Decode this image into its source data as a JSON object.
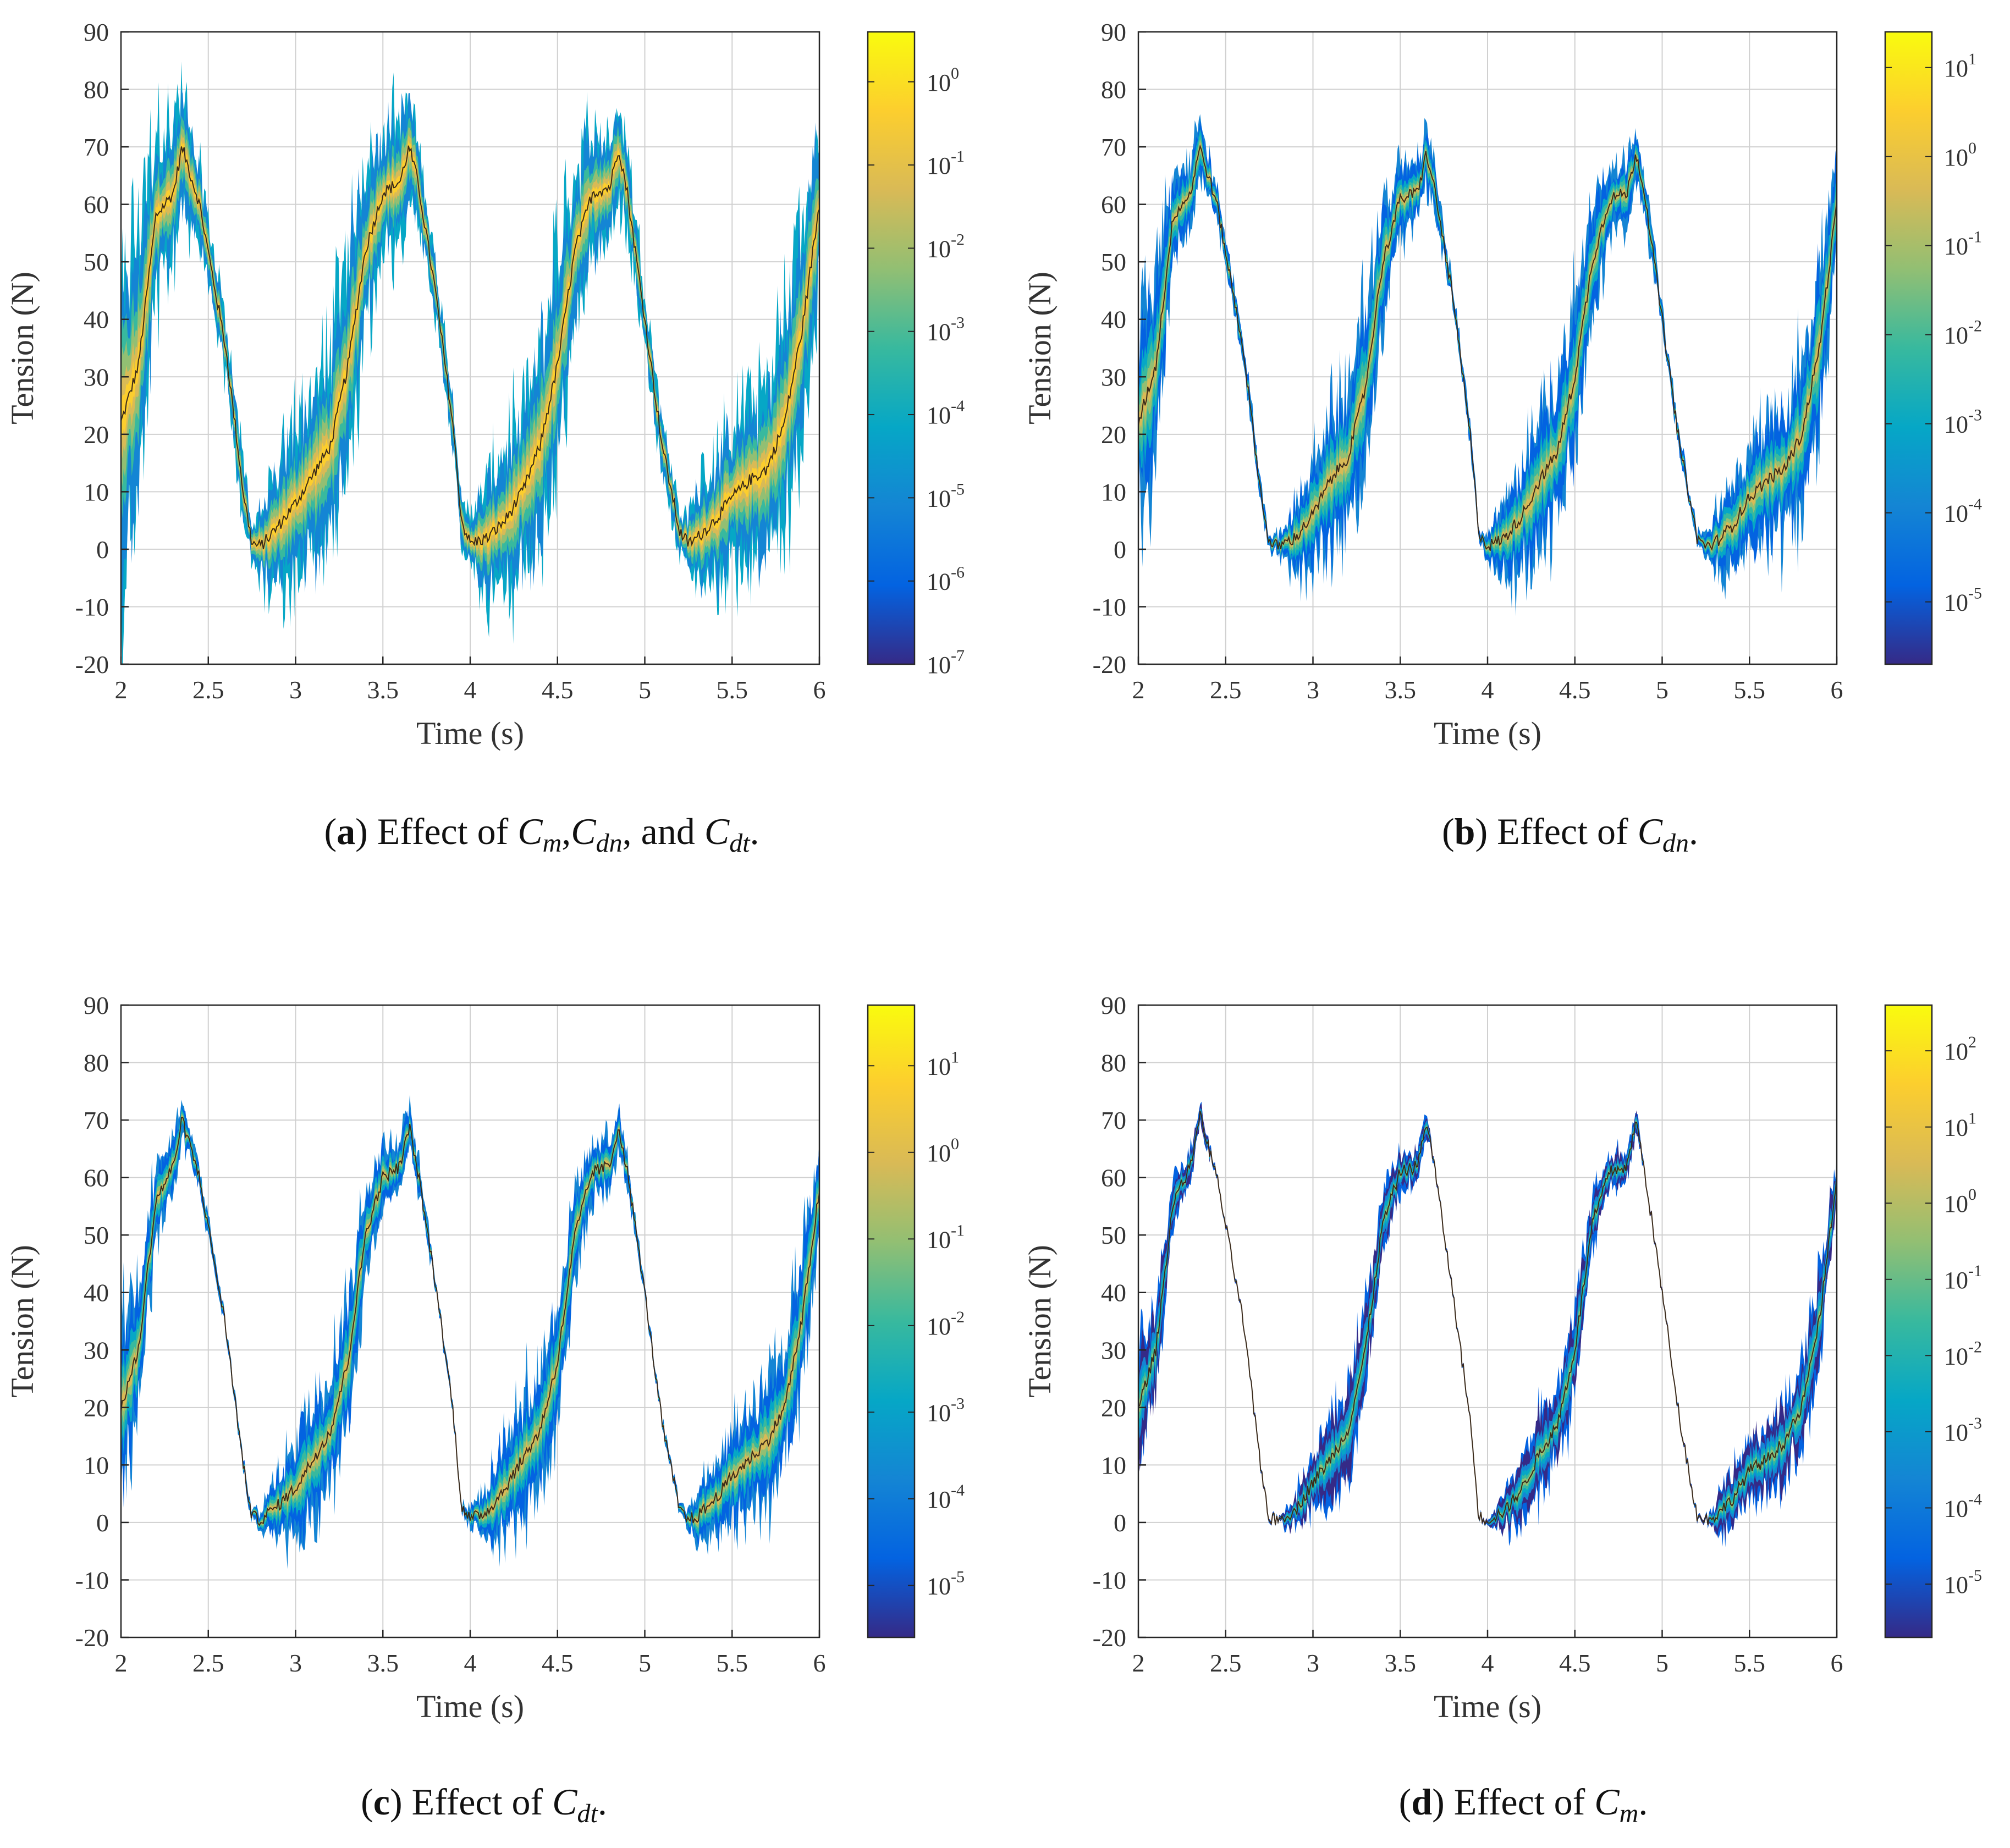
{
  "chart_data": [
    {
      "panel": "a",
      "type": "area",
      "caption": {
        "letter": "a",
        "prefix": "Effect of ",
        "parts": [
          [
            "C",
            "m"
          ],
          [
            "C",
            "dn"
          ],
          [
            "C",
            "dt"
          ]
        ],
        "connectors": [
          ",",
          ", and "
        ]
      },
      "xlabel": "Time (s)",
      "ylabel": "Tension (N)",
      "xlim": [
        2,
        6
      ],
      "ylim": [
        -20,
        90
      ],
      "xticks": [
        "2",
        "2.5",
        "3",
        "3.5",
        "4",
        "4.5",
        "5",
        "5.5",
        "6"
      ],
      "yticks": [
        "-20",
        "-10",
        "0",
        "10",
        "20",
        "30",
        "40",
        "50",
        "60",
        "70",
        "80",
        "90"
      ],
      "grid": true,
      "band_scale": 1.0,
      "colorbar": {
        "scale": "log",
        "tick_exponents": [
          -7,
          -6,
          -5,
          -4,
          -3,
          -2,
          -1,
          0
        ],
        "min_exp": -7,
        "max_exp": 0.6
      },
      "series": [
        {
          "name": "mean tension",
          "x": [
            2.0,
            2.1,
            2.2,
            2.3,
            2.35,
            2.45,
            2.6,
            2.7,
            2.75,
            2.8,
            2.9,
            3.0,
            3.1,
            3.2,
            3.3,
            3.4,
            3.5,
            3.6,
            3.65,
            3.7,
            3.8,
            3.9,
            3.95,
            4.0,
            4.1,
            4.2,
            4.3,
            4.4,
            4.5,
            4.6,
            4.7,
            4.8,
            4.85,
            4.9,
            5.0,
            5.1,
            5.2,
            5.25,
            5.3,
            5.4,
            5.5,
            5.6,
            5.7,
            5.8,
            5.9,
            6.0
          ],
          "y": [
            22,
            32,
            58,
            62,
            70,
            60,
            35,
            10,
            1,
            0.5,
            4,
            8,
            13,
            18,
            32,
            52,
            62,
            64,
            70,
            64,
            45,
            22,
            5,
            1,
            2,
            5,
            10,
            18,
            32,
            52,
            62,
            63,
            70,
            62,
            40,
            18,
            3,
            1,
            2,
            5,
            9,
            12,
            14,
            22,
            38,
            60
          ]
        },
        {
          "name": "envelope spread",
          "x": [
            2.0,
            2.1,
            2.2,
            2.3,
            2.35,
            2.45,
            2.6,
            2.7,
            2.75,
            2.8,
            2.9,
            3.0,
            3.1,
            3.2,
            3.3,
            3.4,
            3.5,
            3.6,
            3.65,
            3.7,
            3.8,
            3.9,
            3.95,
            4.0,
            4.1,
            4.2,
            4.3,
            4.4,
            4.5,
            4.6,
            4.7,
            4.8,
            4.85,
            4.9,
            5.0,
            5.1,
            5.2,
            5.25,
            5.3,
            5.4,
            5.5,
            5.6,
            5.7,
            5.8,
            5.9,
            6.0
          ],
          "y": [
            22,
            20,
            12,
            9,
            8,
            5,
            4,
            4,
            3,
            5,
            8,
            11,
            12,
            14,
            16,
            12,
            9,
            9,
            8,
            6,
            4,
            4,
            3,
            4,
            8,
            10,
            12,
            14,
            15,
            12,
            9,
            8,
            7,
            6,
            4,
            4,
            3,
            4,
            7,
            9,
            10,
            11,
            13,
            15,
            16,
            12
          ]
        }
      ]
    },
    {
      "panel": "b",
      "type": "area",
      "caption": {
        "letter": "b",
        "prefix": "Effect of ",
        "parts": [
          [
            "C",
            "dn"
          ]
        ],
        "connectors": []
      },
      "xlabel": "Time (s)",
      "ylabel": "Tension (N)",
      "xlim": [
        2,
        6
      ],
      "ylim": [
        -20,
        90
      ],
      "xticks": [
        "2",
        "2.5",
        "3",
        "3.5",
        "4",
        "4.5",
        "5",
        "5.5",
        "6"
      ],
      "yticks": [
        "-20",
        "-10",
        "0",
        "10",
        "20",
        "30",
        "40",
        "50",
        "60",
        "70",
        "80",
        "90"
      ],
      "grid": true,
      "band_scale": 0.8,
      "colorbar": {
        "scale": "log",
        "tick_exponents": [
          -5,
          -4,
          -3,
          -2,
          -1,
          0,
          1
        ],
        "min_exp": -5.7,
        "max_exp": 1.4
      },
      "series": [
        {
          "name": "mean tension",
          "x": [
            2.0,
            2.1,
            2.2,
            2.3,
            2.35,
            2.45,
            2.6,
            2.7,
            2.75,
            2.8,
            2.9,
            3.0,
            3.1,
            3.2,
            3.3,
            3.4,
            3.5,
            3.6,
            3.65,
            3.7,
            3.8,
            3.9,
            3.95,
            4.0,
            4.1,
            4.2,
            4.3,
            4.4,
            4.5,
            4.6,
            4.7,
            4.8,
            4.85,
            4.9,
            5.0,
            5.1,
            5.2,
            5.25,
            5.3,
            5.4,
            5.5,
            5.6,
            5.7,
            5.8,
            5.9,
            6.0
          ],
          "y": [
            22,
            32,
            58,
            62,
            70,
            60,
            35,
            10,
            1,
            0.5,
            2,
            6,
            12,
            16,
            28,
            50,
            61,
            62,
            69,
            62,
            44,
            20,
            3,
            0.5,
            2,
            6,
            12,
            17,
            30,
            50,
            61,
            62,
            69,
            62,
            40,
            18,
            2,
            0.5,
            1,
            4,
            9,
            12,
            14,
            20,
            35,
            60
          ]
        },
        {
          "name": "envelope spread",
          "x": [
            2.0,
            2.1,
            2.2,
            2.3,
            2.35,
            2.45,
            2.6,
            2.7,
            2.75,
            2.8,
            2.9,
            3.0,
            3.1,
            3.2,
            3.3,
            3.4,
            3.5,
            3.6,
            3.65,
            3.7,
            3.8,
            3.9,
            3.95,
            4.0,
            4.1,
            4.2,
            4.3,
            4.4,
            4.5,
            4.6,
            4.7,
            4.8,
            4.85,
            4.9,
            5.0,
            5.1,
            5.2,
            5.25,
            5.3,
            5.4,
            5.5,
            5.6,
            5.7,
            5.8,
            5.9,
            6.0
          ],
          "y": [
            18,
            16,
            8,
            6,
            5,
            3,
            2,
            2,
            1,
            2,
            6,
            10,
            12,
            13,
            15,
            10,
            6,
            6,
            5,
            4,
            2,
            2,
            1,
            2,
            7,
            10,
            12,
            13,
            14,
            10,
            6,
            6,
            5,
            4,
            2,
            2,
            1,
            2,
            5,
            8,
            9,
            10,
            12,
            14,
            15,
            10
          ]
        }
      ]
    },
    {
      "panel": "c",
      "type": "area",
      "caption": {
        "letter": "c",
        "prefix": "Effect of ",
        "parts": [
          [
            "C",
            "dt"
          ]
        ],
        "connectors": []
      },
      "xlabel": "Time (s)",
      "ylabel": "Tension (N)",
      "xlim": [
        2,
        6
      ],
      "ylim": [
        -20,
        90
      ],
      "xticks": [
        "2",
        "2.5",
        "3",
        "3.5",
        "4",
        "4.5",
        "5",
        "5.5",
        "6"
      ],
      "yticks": [
        "-20",
        "-10",
        "0",
        "10",
        "20",
        "30",
        "40",
        "50",
        "60",
        "70",
        "80",
        "90"
      ],
      "grid": true,
      "band_scale": 0.75,
      "colorbar": {
        "scale": "log",
        "tick_exponents": [
          -5,
          -4,
          -3,
          -2,
          -1,
          0,
          1
        ],
        "min_exp": -5.6,
        "max_exp": 1.7
      },
      "series": [
        {
          "name": "mean tension",
          "x": [
            2.0,
            2.1,
            2.2,
            2.3,
            2.35,
            2.45,
            2.6,
            2.7,
            2.75,
            2.8,
            2.9,
            3.0,
            3.1,
            3.2,
            3.3,
            3.4,
            3.5,
            3.6,
            3.65,
            3.7,
            3.8,
            3.9,
            3.95,
            4.0,
            4.1,
            4.2,
            4.3,
            4.4,
            4.5,
            4.6,
            4.7,
            4.8,
            4.85,
            4.9,
            5.0,
            5.1,
            5.2,
            5.25,
            5.3,
            5.4,
            5.5,
            5.6,
            5.7,
            5.8,
            5.9,
            6.0
          ],
          "y": [
            20,
            30,
            56,
            62,
            70,
            60,
            34,
            10,
            1,
            0.5,
            3,
            6,
            11,
            16,
            28,
            50,
            60,
            62,
            69,
            61,
            42,
            20,
            3,
            0.5,
            2,
            6,
            11,
            16,
            28,
            50,
            61,
            62,
            69,
            61,
            40,
            17,
            2,
            0.5,
            1,
            4,
            8,
            11,
            14,
            20,
            35,
            58
          ]
        },
        {
          "name": "envelope spread",
          "x": [
            2.0,
            2.1,
            2.2,
            2.3,
            2.35,
            2.45,
            2.6,
            2.7,
            2.75,
            2.8,
            2.9,
            3.0,
            3.1,
            3.2,
            3.3,
            3.4,
            3.5,
            3.6,
            3.65,
            3.7,
            3.8,
            3.9,
            3.95,
            4.0,
            4.1,
            4.2,
            4.3,
            4.4,
            4.5,
            4.6,
            4.7,
            4.8,
            4.85,
            4.9,
            5.0,
            5.1,
            5.2,
            5.25,
            5.3,
            5.4,
            5.5,
            5.6,
            5.7,
            5.8,
            5.9,
            6.0
          ],
          "y": [
            16,
            14,
            7,
            5,
            4,
            2,
            1,
            1,
            1,
            2,
            6,
            10,
            11,
            12,
            13,
            9,
            6,
            5,
            4,
            3,
            1,
            1,
            1,
            2,
            6,
            10,
            11,
            12,
            13,
            9,
            5,
            5,
            4,
            3,
            1,
            1,
            1,
            2,
            5,
            8,
            9,
            10,
            11,
            12,
            13,
            9
          ]
        }
      ]
    },
    {
      "panel": "d",
      "type": "area",
      "caption": {
        "letter": "d",
        "prefix": "Effect of ",
        "parts": [
          [
            "C",
            "m"
          ]
        ],
        "connectors": []
      },
      "xlabel": "Time (s)",
      "ylabel": "Tension (N)",
      "xlim": [
        2,
        6
      ],
      "ylim": [
        -20,
        90
      ],
      "xticks": [
        "2",
        "2.5",
        "3",
        "3.5",
        "4",
        "4.5",
        "5",
        "5.5",
        "6"
      ],
      "yticks": [
        "-20",
        "-10",
        "0",
        "10",
        "20",
        "30",
        "40",
        "50",
        "60",
        "70",
        "80",
        "90"
      ],
      "grid": true,
      "band_scale": 0.55,
      "colorbar": {
        "scale": "log",
        "tick_exponents": [
          -5,
          -4,
          -3,
          -2,
          -1,
          0,
          1,
          2
        ],
        "min_exp": -5.7,
        "max_exp": 2.6
      },
      "series": [
        {
          "name": "mean tension",
          "x": [
            2.0,
            2.1,
            2.2,
            2.3,
            2.35,
            2.45,
            2.6,
            2.7,
            2.75,
            2.8,
            2.9,
            3.0,
            3.1,
            3.2,
            3.3,
            3.4,
            3.5,
            3.6,
            3.65,
            3.7,
            3.8,
            3.9,
            3.95,
            4.0,
            4.1,
            4.2,
            4.3,
            4.4,
            4.5,
            4.6,
            4.7,
            4.8,
            4.85,
            4.9,
            5.0,
            5.1,
            5.2,
            5.25,
            5.3,
            5.4,
            5.5,
            5.6,
            5.7,
            5.8,
            5.9,
            6.0
          ],
          "y": [
            20,
            30,
            56,
            62,
            71,
            60,
            35,
            10,
            0.5,
            0.5,
            2,
            7,
            11,
            16,
            30,
            52,
            61,
            62,
            70,
            61,
            40,
            18,
            1,
            0.5,
            2,
            6,
            12,
            17,
            30,
            52,
            61,
            62,
            70,
            61,
            40,
            18,
            1,
            0.5,
            1,
            4,
            9,
            11,
            14,
            20,
            35,
            60
          ]
        },
        {
          "name": "envelope spread",
          "x": [
            2.0,
            2.1,
            2.2,
            2.3,
            2.35,
            2.45,
            2.6,
            2.7,
            2.75,
            2.8,
            2.9,
            3.0,
            3.1,
            3.2,
            3.3,
            3.4,
            3.5,
            3.6,
            3.65,
            3.7,
            3.8,
            3.9,
            3.95,
            4.0,
            4.1,
            4.2,
            4.3,
            4.4,
            4.5,
            4.6,
            4.7,
            4.8,
            4.85,
            4.9,
            5.0,
            5.1,
            5.2,
            5.25,
            5.3,
            5.4,
            5.5,
            5.6,
            5.7,
            5.8,
            5.9,
            6.0
          ],
          "y": [
            14,
            12,
            6,
            4,
            3,
            0.4,
            0.3,
            0.3,
            0.3,
            0.6,
            4,
            8,
            10,
            11,
            12,
            8,
            5,
            4,
            3,
            0.5,
            0.3,
            0.3,
            0.3,
            0.6,
            5,
            9,
            10,
            11,
            12,
            8,
            5,
            4,
            3,
            0.5,
            0.3,
            0.3,
            0.3,
            0.6,
            4,
            7,
            8,
            9,
            10,
            11,
            12,
            8
          ]
        }
      ]
    }
  ],
  "palette": {
    "parula": [
      "#352a87",
      "#0363e1",
      "#1485d4",
      "#06a7c6",
      "#38b99e",
      "#92bf73",
      "#d9ba56",
      "#fcce2e",
      "#f9fb0e"
    ],
    "mean_line": "#3a2a1a",
    "axis": "#262626",
    "grid": "#d0d0d0"
  }
}
